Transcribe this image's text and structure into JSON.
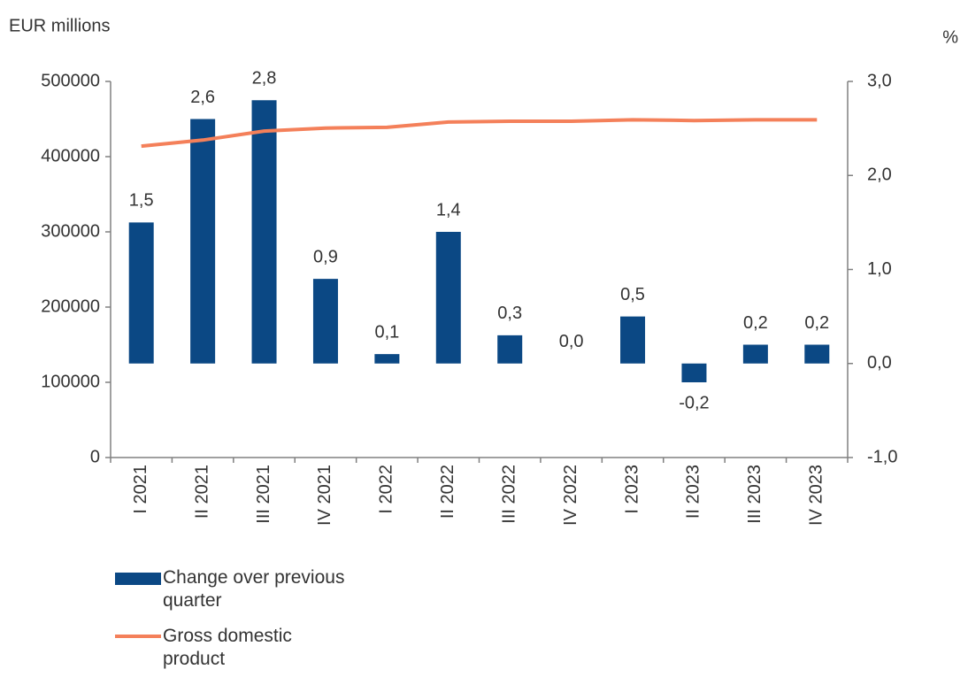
{
  "chart_data": {
    "type": "bar",
    "y_label": "EUR millions",
    "y2_label": "%",
    "categories": [
      "I 2021",
      "II 2021",
      "III 2021",
      "IV 2021",
      "I 2022",
      "II 2022",
      "III 2022",
      "IV 2022",
      "I 2023",
      "II 2023",
      "III 2023",
      "IV 2023"
    ],
    "series": [
      {
        "name": "Change over previous quarter",
        "type": "bar",
        "axis": "y2",
        "color": "#0b4884",
        "values": [
          1.5,
          2.6,
          2.8,
          0.9,
          0.1,
          1.4,
          0.3,
          0.0,
          0.5,
          -0.2,
          0.2,
          0.2
        ],
        "value_labels": [
          "1,5",
          "2,6",
          "2,8",
          "0,9",
          "0,1",
          "1,4",
          "0,3",
          "0,0",
          "0,5",
          "-0,2",
          "0,2",
          "0,2"
        ]
      },
      {
        "name": "Gross domestic product",
        "type": "line",
        "axis": "y",
        "color": "#f4805a",
        "values": [
          414000,
          422000,
          434000,
          438000,
          439000,
          446000,
          447000,
          447000,
          449000,
          448000,
          449000,
          449000
        ]
      }
    ],
    "ylim": [
      0,
      500000
    ],
    "yticks": [
      0,
      100000,
      200000,
      300000,
      400000,
      500000
    ],
    "y2lim": [
      -1.0,
      3.0
    ],
    "y2ticks": [
      {
        "value": -1.0,
        "label": "-1,0"
      },
      {
        "value": 0.0,
        "label": "0,0"
      },
      {
        "value": 1.0,
        "label": "1,0"
      },
      {
        "value": 2.0,
        "label": "2,0"
      },
      {
        "value": 3.0,
        "label": "3,0"
      }
    ]
  }
}
